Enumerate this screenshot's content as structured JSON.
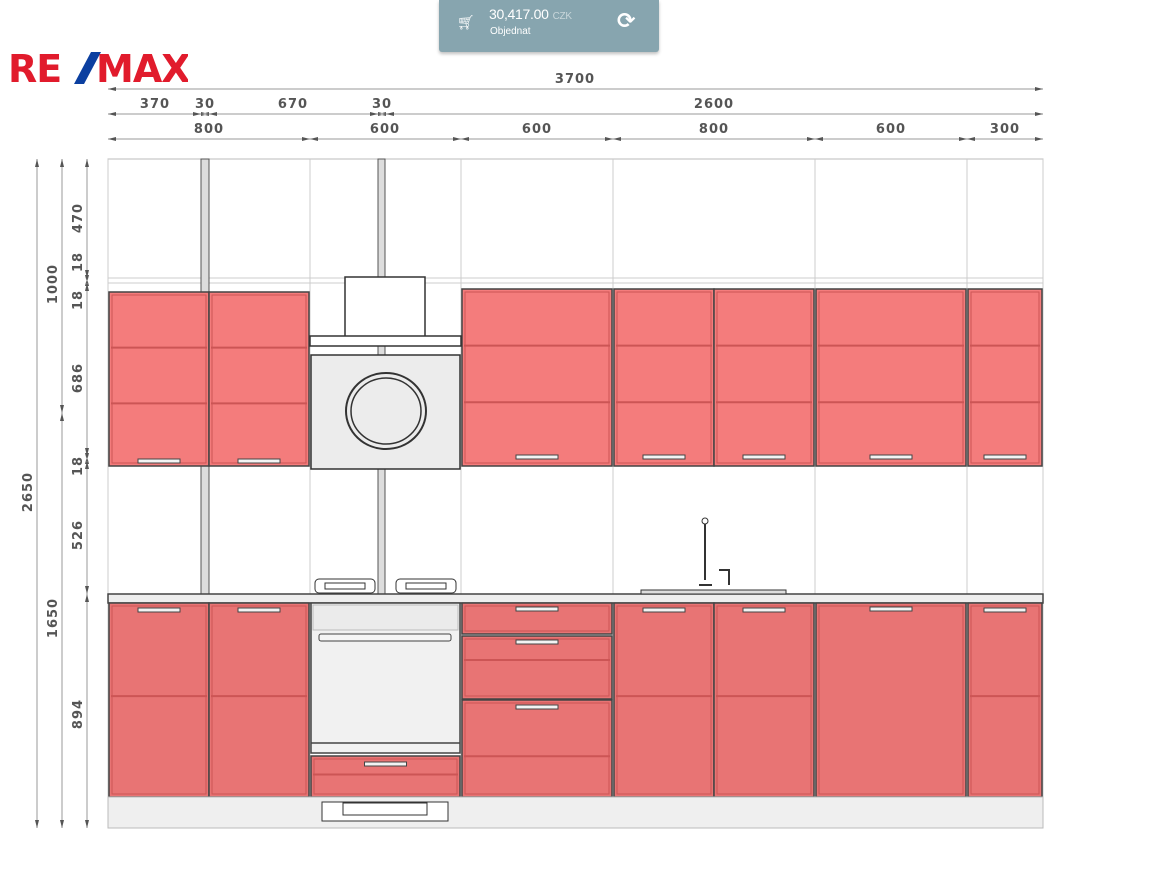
{
  "cart": {
    "icon": "shopping-cart-icon",
    "price": "30,417.00",
    "currency": "CZK",
    "order_label": "Objednat",
    "refresh_icon": "refresh-icon"
  },
  "logo": {
    "text": "RE/MAX",
    "colors": {
      "red": "#e11b2c",
      "blue": "#0b3fa0"
    }
  },
  "dimensions": {
    "total_width": "3700",
    "row2": [
      "370",
      "30",
      "670",
      "30",
      "2600"
    ],
    "row3": [
      "800",
      "600",
      "600",
      "800",
      "600",
      "300"
    ],
    "total_height": "2650",
    "upper_height": "1000",
    "lower_height": "1650",
    "detail": [
      "470",
      "18",
      "18",
      "686",
      "18",
      "526",
      "894"
    ]
  },
  "colors": {
    "cabinet_front": "#f47c7c",
    "base_front": "#e87474",
    "appliance": "#ececec",
    "cart_bg": "#87a5af"
  }
}
